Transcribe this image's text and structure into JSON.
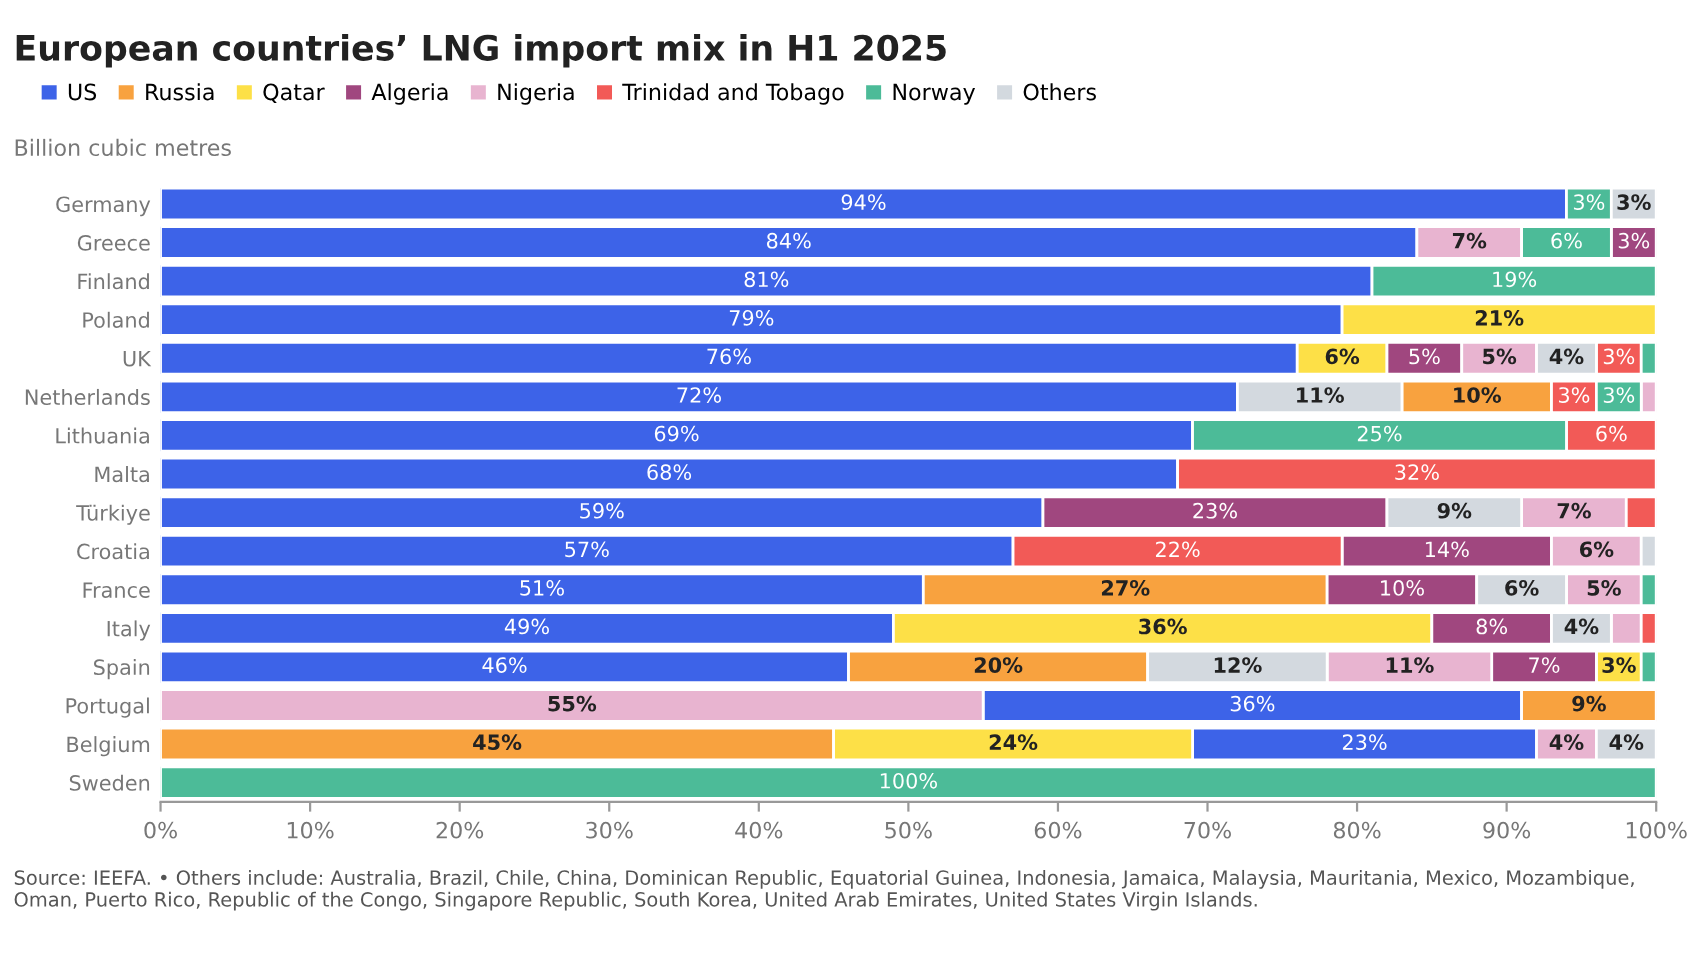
{
  "chart_data": {
    "type": "bar",
    "orientation": "horizontal",
    "title": "European countries’ LNG import mix in H1 2025",
    "ylabel": "Billion cubic metres",
    "categories": [
      "Germany",
      "Greece",
      "Finland",
      "Poland",
      "UK",
      "Netherlands",
      "Lithuania",
      "Malta",
      "Türkiye",
      "Croatia",
      "France",
      "Italy",
      "Spain",
      "Portugal",
      "Belgium",
      "Sweden"
    ],
    "series": [
      {
        "name": "US",
        "color": "#3d63e8",
        "values": [
          94,
          84,
          81,
          79,
          76,
          72,
          69,
          68,
          59,
          57,
          51,
          49,
          46,
          36,
          23,
          null
        ],
        "base": [
          0,
          0,
          0,
          0,
          0,
          0,
          0,
          0,
          0,
          0,
          0,
          0,
          0,
          55,
          69,
          null
        ],
        "value_labels": [
          "94%",
          "84%",
          "81%",
          "79%",
          "76%",
          "72%",
          "69%",
          "68%",
          "59%",
          "57%",
          "51%",
          "49%",
          "46%",
          "36%",
          "23%",
          null
        ]
      },
      {
        "name": "Russia",
        "color": "#f8a23f",
        "values": [
          null,
          null,
          null,
          null,
          null,
          10,
          null,
          null,
          null,
          null,
          27,
          null,
          20,
          9,
          45,
          null
        ],
        "base": [
          null,
          null,
          null,
          null,
          null,
          83,
          null,
          null,
          null,
          null,
          51,
          null,
          46,
          91,
          0,
          null
        ],
        "value_labels": [
          null,
          null,
          null,
          null,
          null,
          "10%",
          null,
          null,
          null,
          null,
          "27%",
          null,
          "20%",
          "9%",
          "45%",
          null
        ]
      },
      {
        "name": "Qatar",
        "color": "#fde047",
        "values": [
          null,
          null,
          null,
          21,
          6,
          null,
          null,
          null,
          null,
          null,
          null,
          36,
          3,
          null,
          24,
          null
        ],
        "base": [
          null,
          null,
          null,
          79,
          76,
          null,
          null,
          null,
          null,
          null,
          null,
          49,
          96,
          null,
          45,
          null
        ],
        "value_labels": [
          null,
          null,
          null,
          "21%",
          "6%",
          null,
          null,
          null,
          null,
          null,
          null,
          "36%",
          "3%",
          null,
          "24%",
          null
        ]
      },
      {
        "name": "Algeria",
        "color": "#a0477f",
        "values": [
          null,
          3,
          null,
          null,
          5,
          null,
          null,
          null,
          23,
          14,
          10,
          8,
          7,
          null,
          null,
          null
        ],
        "base": [
          null,
          97,
          null,
          null,
          82,
          null,
          null,
          null,
          59,
          79,
          78,
          85,
          89,
          null,
          null,
          null
        ],
        "value_labels": [
          null,
          "3%",
          null,
          null,
          "5%",
          null,
          null,
          null,
          "23%",
          "14%",
          "10%",
          "8%",
          "7%",
          null,
          null,
          null
        ]
      },
      {
        "name": "Nigeria",
        "color": "#e8b4d0",
        "values": [
          null,
          7,
          null,
          null,
          5,
          1,
          null,
          null,
          7,
          6,
          5,
          2,
          11,
          55,
          4,
          null
        ],
        "base": [
          null,
          84,
          null,
          null,
          87,
          99,
          null,
          null,
          91,
          93,
          94,
          97,
          78,
          0,
          92,
          null
        ],
        "value_labels": [
          null,
          "7%",
          null,
          null,
          "5%",
          null,
          null,
          null,
          "7%",
          "6%",
          "5%",
          null,
          "11%",
          "55%",
          "4%",
          null
        ]
      },
      {
        "name": "Trinidad and Tobago",
        "color": "#f25a57",
        "values": [
          null,
          null,
          null,
          null,
          3,
          3,
          6,
          32,
          2,
          22,
          null,
          1,
          null,
          null,
          null,
          null
        ],
        "base": [
          null,
          null,
          null,
          null,
          96,
          93,
          94,
          68,
          98,
          57,
          null,
          99,
          null,
          null,
          null,
          null
        ],
        "value_labels": [
          null,
          null,
          null,
          null,
          "3%",
          "3%",
          "6%",
          "32%",
          null,
          "22%",
          null,
          null,
          null,
          null,
          null,
          null
        ]
      },
      {
        "name": "Norway",
        "color": "#4cbb98",
        "values": [
          3,
          6,
          19,
          null,
          1,
          3,
          25,
          null,
          null,
          null,
          1,
          null,
          1,
          null,
          null,
          100
        ],
        "base": [
          94,
          91,
          81,
          null,
          99,
          96,
          69,
          null,
          null,
          null,
          99,
          null,
          99,
          null,
          null,
          0
        ],
        "value_labels": [
          "3%",
          "6%",
          "19%",
          null,
          null,
          "3%",
          "25%",
          null,
          null,
          null,
          null,
          null,
          null,
          null,
          null,
          "100%"
        ]
      },
      {
        "name": "Others",
        "color": "#d3d9df",
        "values": [
          3,
          null,
          null,
          null,
          4,
          11,
          null,
          null,
          9,
          1,
          6,
          4,
          12,
          null,
          4,
          null
        ],
        "base": [
          97,
          null,
          null,
          null,
          92,
          72,
          null,
          null,
          82,
          99,
          88,
          93,
          66,
          null,
          96,
          null
        ],
        "value_labels": [
          "3%",
          null,
          null,
          null,
          "4%",
          "11%",
          null,
          null,
          "9%",
          null,
          "6%",
          "4%",
          "12%",
          null,
          "4%",
          null
        ]
      }
    ],
    "xlim": [
      0,
      100
    ],
    "xticks": [
      {
        "value": 0,
        "label": "0%"
      },
      {
        "value": 10,
        "label": "10%"
      },
      {
        "value": 20,
        "label": "20%"
      },
      {
        "value": 30,
        "label": "30%"
      },
      {
        "value": 40,
        "label": "40%"
      },
      {
        "value": 50,
        "label": "50%"
      },
      {
        "value": 60,
        "label": "60%"
      },
      {
        "value": 70,
        "label": "70%"
      },
      {
        "value": 80,
        "label": "80%"
      },
      {
        "value": 90,
        "label": "90%"
      },
      {
        "value": 100,
        "label": "100%"
      }
    ],
    "legend": "top left",
    "annotations": [
      "Source: IEEFA. • Others include: Australia, Brazil, Chile, China, Dominican Republic, Equatorial Guinea, Indonesia, Jamaica, Malaysia, Mauritania, Mexico, Mozambique, Oman, Puerto Rico, Republic of the Congo, Singapore Republic, South Korea, United Arab Emirates, United States Virgin Islands."
    ]
  }
}
